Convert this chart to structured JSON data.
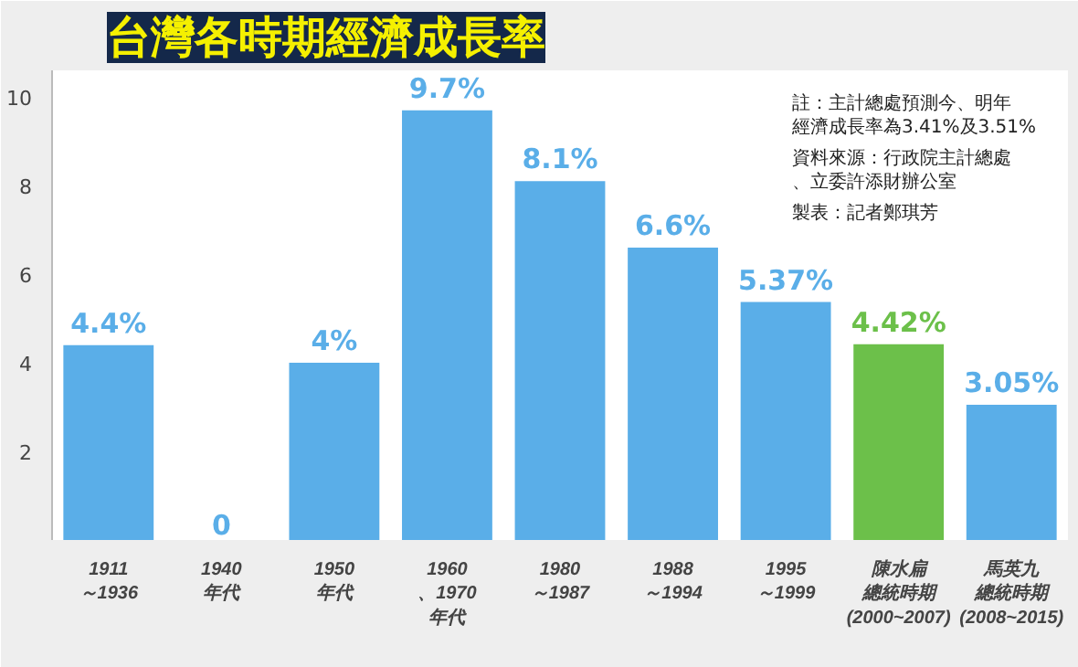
{
  "chart_data": {
    "type": "bar",
    "title": "台灣各時期經濟成長率",
    "categories": [
      "1911～1936",
      "1940年代",
      "1950年代",
      "1960、1970年代",
      "1980～1987",
      "1988～1994",
      "1995～1999",
      "陳水扁總統時期(2000~2007)",
      "馬英九總統時期(2008~2015)"
    ],
    "values": [
      4.4,
      0,
      4,
      9.7,
      8.1,
      6.6,
      5.37,
      4.42,
      3.05
    ],
    "colors": [
      "#5aaee8",
      "#5aaee8",
      "#5aaee8",
      "#5aaee8",
      "#5aaee8",
      "#5aaee8",
      "#5aaee8",
      "#6cc04a",
      "#5aaee8"
    ],
    "value_labels": [
      "4.4%",
      "0",
      "4%",
      "9.7%",
      "8.1%",
      "6.6%",
      "5.37%",
      "4.42%",
      "3.05%"
    ],
    "ylim": [
      0,
      10.6
    ],
    "yticks": [
      2,
      4,
      6,
      8,
      10
    ],
    "grid": false,
    "annotations": [
      "註：主計總處預測今、明年經濟成長率為3.41%及3.51%",
      "資料來源：行政院主計總處、立委許添財辦公室",
      "製表：記者鄭琪芳"
    ]
  }
}
